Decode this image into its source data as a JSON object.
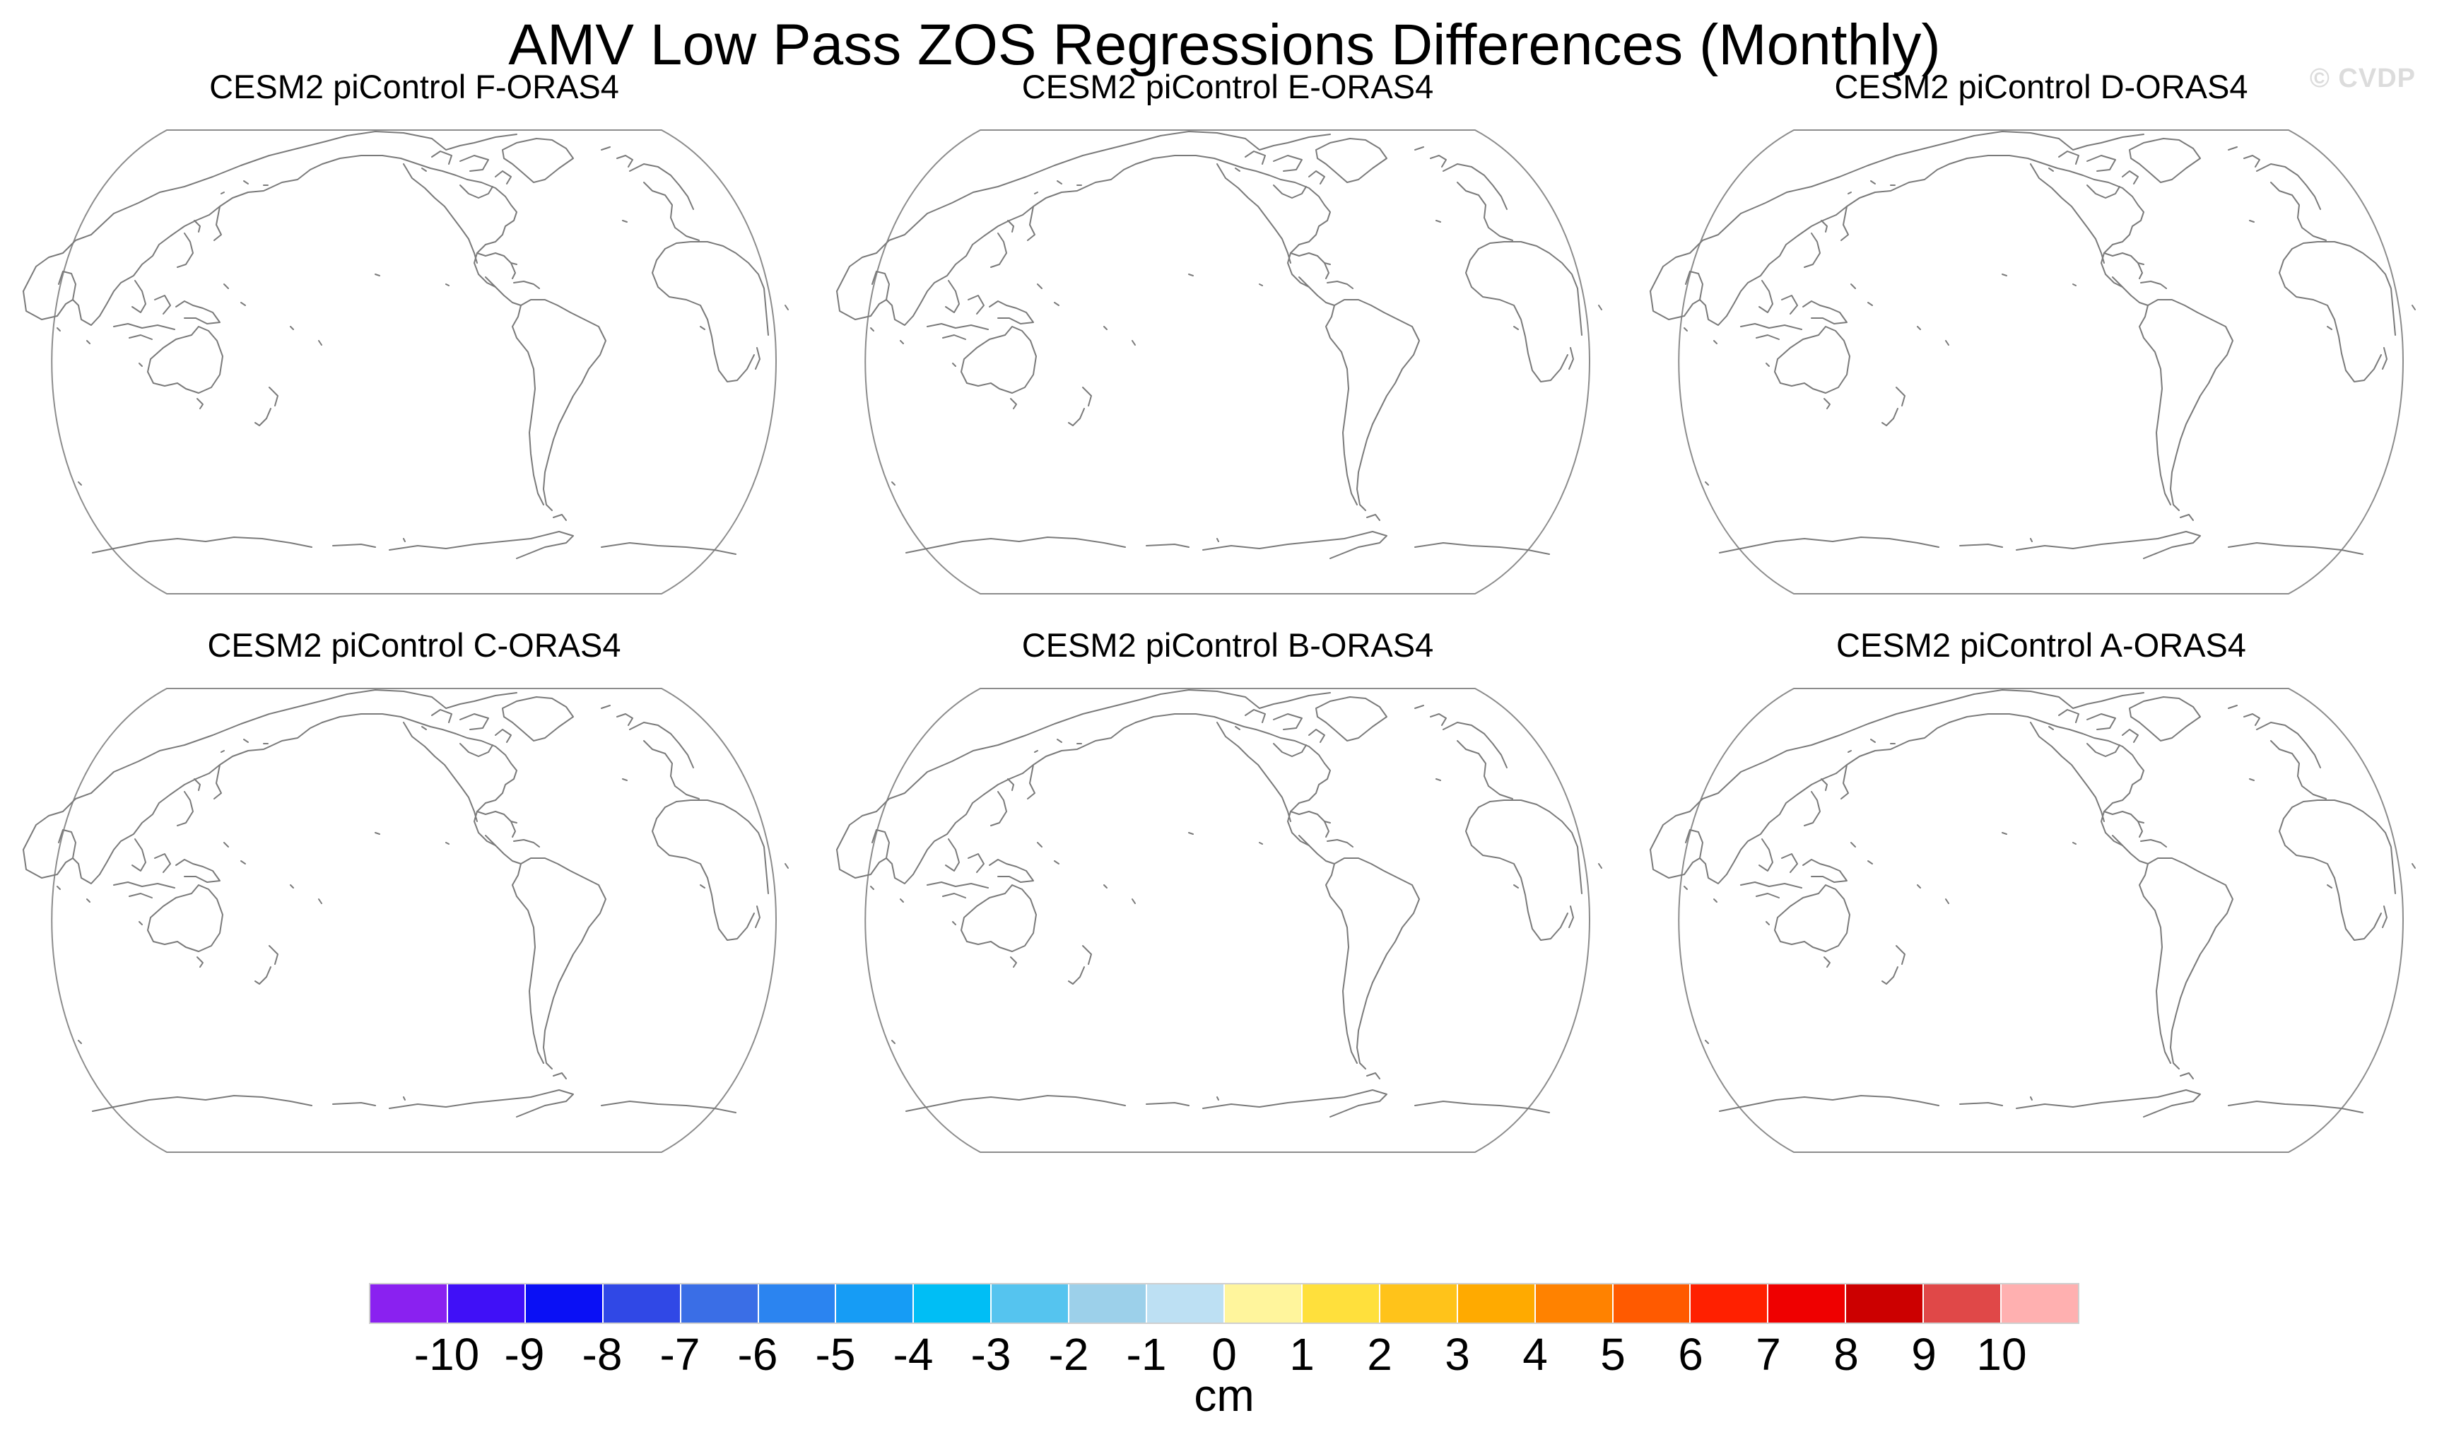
{
  "title": "AMV Low Pass ZOS Regressions Differences (Monthly)",
  "watermark": "© CVDP",
  "panels": [
    {
      "title": "CESM2 piControl F-ORAS4"
    },
    {
      "title": "CESM2 piControl E-ORAS4"
    },
    {
      "title": "CESM2 piControl D-ORAS4"
    },
    {
      "title": "CESM2 piControl C-ORAS4"
    },
    {
      "title": "CESM2 piControl B-ORAS4"
    },
    {
      "title": "CESM2 piControl A-ORAS4"
    }
  ],
  "colorbar": {
    "units": "cm",
    "ticks": [
      "-10",
      "-9",
      "-8",
      "-7",
      "-6",
      "-5",
      "-4",
      "-3",
      "-2",
      "-1",
      "0",
      "1",
      "2",
      "3",
      "4",
      "5",
      "6",
      "7",
      "8",
      "9",
      "10"
    ],
    "colors": [
      "#8a21f0",
      "#4010f7",
      "#0a10f5",
      "#3048e6",
      "#3a6ee6",
      "#2b84f0",
      "#169cf5",
      "#00bef5",
      "#55c4ef",
      "#9cd0ea",
      "#bde0f3",
      "#fff59c",
      "#ffe03c",
      "#ffc31a",
      "#ffaa00",
      "#ff8200",
      "#ff5a00",
      "#ff2000",
      "#ef0000",
      "#cc0000",
      "#e04848",
      "#ffb0b0"
    ]
  }
}
